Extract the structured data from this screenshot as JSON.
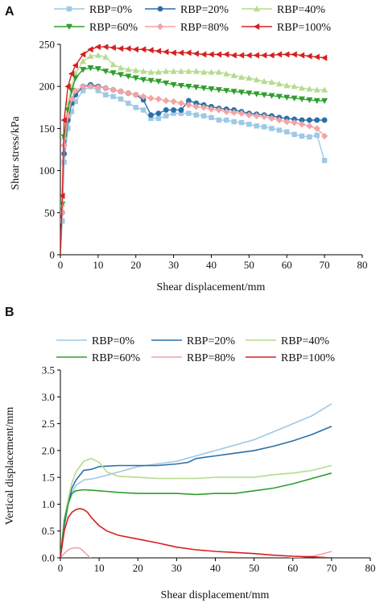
{
  "chart_data": [
    {
      "panel": "A",
      "type": "line",
      "xlabel": "Shear displacement/mm",
      "ylabel": "Shear stress/kPa",
      "xlim": [
        0,
        80
      ],
      "ylim": [
        0,
        250
      ],
      "xticks": [
        0,
        10,
        20,
        30,
        40,
        50,
        60,
        70,
        80
      ],
      "yticks": [
        0,
        50,
        100,
        150,
        200,
        250
      ],
      "legend_position": "top",
      "series": [
        {
          "name": "RBP=0%",
          "color": "#9ec9e6",
          "marker": "square",
          "x": [
            0,
            0.5,
            1,
            2,
            3,
            4,
            6,
            8,
            10,
            12,
            14,
            16,
            18,
            20,
            22,
            24,
            26,
            28,
            30,
            32,
            34,
            36,
            38,
            40,
            42,
            44,
            46,
            48,
            50,
            52,
            54,
            56,
            58,
            60,
            62,
            64,
            66,
            68,
            70
          ],
          "y": [
            0,
            40,
            110,
            150,
            170,
            182,
            195,
            200,
            195,
            190,
            188,
            185,
            180,
            175,
            172,
            162,
            162,
            165,
            168,
            168,
            168,
            166,
            165,
            163,
            160,
            160,
            158,
            157,
            155,
            153,
            152,
            150,
            148,
            146,
            143,
            141,
            140,
            142,
            112
          ]
        },
        {
          "name": "RBP=20%",
          "color": "#2a6fa8",
          "marker": "circle",
          "x": [
            0,
            0.5,
            1,
            2,
            3,
            4,
            6,
            8,
            10,
            12,
            14,
            16,
            18,
            20,
            22,
            24,
            26,
            28,
            30,
            32,
            34,
            36,
            38,
            40,
            42,
            44,
            46,
            48,
            50,
            52,
            54,
            56,
            58,
            60,
            62,
            64,
            66,
            68,
            70
          ],
          "y": [
            0,
            50,
            120,
            160,
            180,
            190,
            200,
            202,
            200,
            198,
            196,
            194,
            192,
            190,
            184,
            166,
            168,
            172,
            172,
            172,
            183,
            180,
            178,
            176,
            174,
            173,
            172,
            170,
            168,
            167,
            166,
            165,
            163,
            162,
            161,
            160,
            160,
            160,
            160
          ]
        },
        {
          "name": "RBP=40%",
          "color": "#b5dc8e",
          "marker": "triangle-up",
          "x": [
            0,
            0.5,
            1,
            2,
            3,
            4,
            6,
            8,
            10,
            12,
            14,
            16,
            18,
            20,
            22,
            24,
            26,
            28,
            30,
            32,
            34,
            36,
            38,
            40,
            42,
            44,
            46,
            48,
            50,
            52,
            54,
            56,
            58,
            60,
            62,
            64,
            66,
            68,
            70
          ],
          "y": [
            0,
            60,
            140,
            180,
            200,
            215,
            230,
            236,
            237,
            235,
            226,
            222,
            220,
            219,
            218,
            217,
            217,
            218,
            218,
            218,
            218,
            218,
            217,
            217,
            217,
            215,
            213,
            211,
            210,
            208,
            206,
            205,
            203,
            201,
            200,
            198,
            197,
            196,
            196
          ]
        },
        {
          "name": "RBP=60%",
          "color": "#2e9e2e",
          "marker": "triangle-down",
          "x": [
            0,
            0.5,
            1,
            2,
            3,
            4,
            6,
            8,
            10,
            12,
            14,
            16,
            18,
            20,
            22,
            24,
            26,
            28,
            30,
            32,
            34,
            36,
            38,
            40,
            42,
            44,
            46,
            48,
            50,
            52,
            54,
            56,
            58,
            60,
            62,
            64,
            66,
            68,
            70
          ],
          "y": [
            0,
            60,
            140,
            172,
            195,
            210,
            220,
            222,
            221,
            218,
            216,
            214,
            212,
            210,
            208,
            207,
            206,
            204,
            202,
            201,
            200,
            199,
            198,
            197,
            196,
            195,
            194,
            193,
            192,
            191,
            190,
            189,
            188,
            187,
            186,
            185,
            184,
            183,
            183
          ]
        },
        {
          "name": "RBP=80%",
          "color": "#f4a3a3",
          "marker": "diamond",
          "x": [
            0,
            0.5,
            1,
            2,
            3,
            4,
            6,
            8,
            10,
            12,
            14,
            16,
            18,
            20,
            22,
            24,
            26,
            28,
            30,
            32,
            34,
            36,
            38,
            40,
            42,
            44,
            46,
            48,
            50,
            52,
            54,
            56,
            58,
            60,
            62,
            64,
            66,
            68,
            70
          ],
          "y": [
            0,
            50,
            130,
            165,
            185,
            195,
            200,
            200,
            199,
            198,
            196,
            194,
            192,
            190,
            188,
            186,
            185,
            183,
            182,
            180,
            178,
            176,
            175,
            173,
            172,
            170,
            169,
            168,
            166,
            165,
            164,
            162,
            160,
            158,
            157,
            155,
            153,
            150,
            141
          ]
        },
        {
          "name": "RBP=100%",
          "color": "#d62020",
          "marker": "triangle-left",
          "x": [
            0,
            0.5,
            1,
            2,
            3,
            4,
            6,
            8,
            10,
            12,
            14,
            16,
            18,
            20,
            22,
            24,
            26,
            28,
            30,
            32,
            34,
            36,
            38,
            40,
            42,
            44,
            46,
            48,
            50,
            52,
            54,
            56,
            58,
            60,
            62,
            64,
            66,
            68,
            70
          ],
          "y": [
            0,
            70,
            160,
            200,
            215,
            225,
            238,
            244,
            247,
            247,
            246,
            245,
            245,
            244,
            244,
            243,
            242,
            241,
            240,
            240,
            240,
            239,
            238,
            238,
            238,
            238,
            237,
            237,
            237,
            237,
            237,
            237,
            238,
            238,
            238,
            237,
            236,
            235,
            234
          ]
        }
      ]
    },
    {
      "panel": "B",
      "type": "line",
      "xlabel": "Shear displacement/mm",
      "ylabel": "Vertical displacement/mm",
      "xlim": [
        0,
        80
      ],
      "ylim": [
        0,
        3.5
      ],
      "xticks": [
        0,
        10,
        20,
        30,
        40,
        50,
        60,
        70,
        80
      ],
      "yticks": [
        0.0,
        0.5,
        1.0,
        1.5,
        2.0,
        2.5,
        3.0,
        3.5
      ],
      "ytick_labels": [
        "0.0",
        "0.5",
        "1.0",
        "1.5",
        "2.0",
        "2.5",
        "3.0",
        "3.5"
      ],
      "legend_position": "top",
      "series": [
        {
          "name": "RBP=0%",
          "color": "#9ec9e6",
          "x": [
            0,
            1,
            2,
            3,
            4,
            6,
            8,
            10,
            15,
            20,
            25,
            30,
            35,
            40,
            45,
            50,
            55,
            60,
            65,
            70
          ],
          "y": [
            0,
            0.6,
            1.0,
            1.2,
            1.35,
            1.45,
            1.47,
            1.5,
            1.6,
            1.7,
            1.75,
            1.8,
            1.9,
            2.0,
            2.1,
            2.2,
            2.35,
            2.5,
            2.65,
            2.87
          ]
        },
        {
          "name": "RBP=20%",
          "color": "#2a6fa8",
          "x": [
            0,
            1,
            2,
            3,
            4,
            6,
            8,
            10,
            15,
            20,
            25,
            30,
            33,
            35,
            40,
            45,
            50,
            55,
            60,
            65,
            70
          ],
          "y": [
            0,
            0.6,
            1.0,
            1.3,
            1.45,
            1.63,
            1.65,
            1.7,
            1.72,
            1.72,
            1.72,
            1.75,
            1.78,
            1.85,
            1.9,
            1.95,
            2.0,
            2.08,
            2.18,
            2.3,
            2.45
          ]
        },
        {
          "name": "RBP=40%",
          "color": "#b5dc8e",
          "x": [
            0,
            1,
            2,
            3,
            4,
            6,
            8,
            10,
            12,
            15,
            20,
            25,
            30,
            35,
            40,
            45,
            50,
            55,
            60,
            65,
            70
          ],
          "y": [
            0,
            0.7,
            1.1,
            1.4,
            1.6,
            1.8,
            1.85,
            1.78,
            1.6,
            1.52,
            1.5,
            1.48,
            1.48,
            1.48,
            1.5,
            1.5,
            1.5,
            1.55,
            1.58,
            1.63,
            1.72
          ]
        },
        {
          "name": "RBP=60%",
          "color": "#2e9e2e",
          "x": [
            0,
            1,
            2,
            3,
            4,
            6,
            8,
            10,
            15,
            20,
            25,
            30,
            35,
            40,
            45,
            50,
            55,
            60,
            65,
            70
          ],
          "y": [
            0,
            0.7,
            1.0,
            1.2,
            1.25,
            1.27,
            1.26,
            1.25,
            1.22,
            1.2,
            1.2,
            1.2,
            1.18,
            1.2,
            1.2,
            1.25,
            1.3,
            1.38,
            1.48,
            1.58
          ]
        },
        {
          "name": "RBP=80%",
          "color": "#f4a3a3",
          "x": [
            0,
            1,
            2,
            3,
            4,
            5,
            6,
            7,
            8,
            10,
            15,
            20,
            30,
            40,
            50,
            55,
            60,
            65,
            68,
            70
          ],
          "y": [
            0,
            0.08,
            0.15,
            0.18,
            0.19,
            0.18,
            0.12,
            0.05,
            -0.02,
            -0.1,
            -0.13,
            -0.13,
            -0.14,
            -0.14,
            -0.1,
            -0.05,
            0.0,
            0.03,
            0.08,
            0.12
          ]
        },
        {
          "name": "RBP=100%",
          "color": "#d62020",
          "x": [
            0,
            1,
            2,
            3,
            4,
            5,
            6,
            7,
            8,
            10,
            12,
            15,
            20,
            25,
            30,
            35,
            40,
            45,
            50,
            55,
            60,
            65,
            70
          ],
          "y": [
            0,
            0.5,
            0.75,
            0.85,
            0.9,
            0.92,
            0.9,
            0.85,
            0.75,
            0.6,
            0.5,
            0.42,
            0.35,
            0.28,
            0.2,
            0.15,
            0.12,
            0.1,
            0.08,
            0.05,
            0.03,
            0.02,
            0.0
          ]
        }
      ]
    }
  ]
}
